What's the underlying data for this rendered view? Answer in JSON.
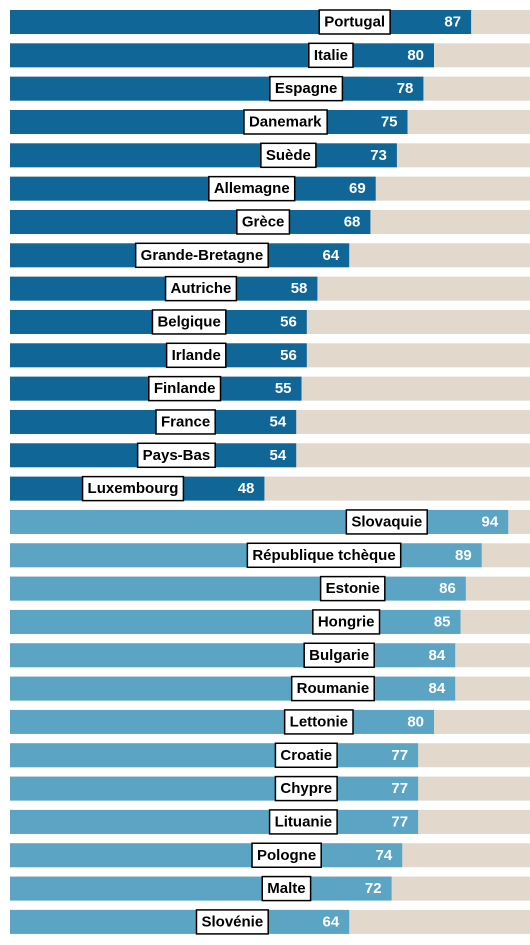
{
  "chart_data": [
    {
      "type": "bar",
      "orientation": "horizontal",
      "color": "#0f6697",
      "track_color": "#e2d8cb",
      "xlim": [
        0,
        100
      ],
      "categories": [
        "Portugal",
        "Italie",
        "Espagne",
        "Danemark",
        "Suède",
        "Allemagne",
        "Grèce",
        "Grande-Bretagne",
        "Autriche",
        "Belgique",
        "Irlande",
        "Finlande",
        "France",
        "Pays-Bas",
        "Luxembourg"
      ],
      "values": [
        87,
        80,
        78,
        75,
        73,
        69,
        68,
        64,
        58,
        56,
        56,
        55,
        54,
        54,
        48
      ]
    },
    {
      "type": "bar",
      "orientation": "horizontal",
      "color": "#5ba4c3",
      "track_color": "#e2d8cb",
      "xlim": [
        0,
        100
      ],
      "categories": [
        "Slovaquie",
        "République tchèque",
        "Estonie",
        "Hongrie",
        "Bulgarie",
        "Roumanie",
        "Lettonie",
        "Croatie",
        "Chypre",
        "Lituanie",
        "Pologne",
        "Malte",
        "Slovénie"
      ],
      "values": [
        94,
        89,
        86,
        85,
        84,
        84,
        80,
        77,
        77,
        77,
        74,
        72,
        64
      ]
    }
  ]
}
